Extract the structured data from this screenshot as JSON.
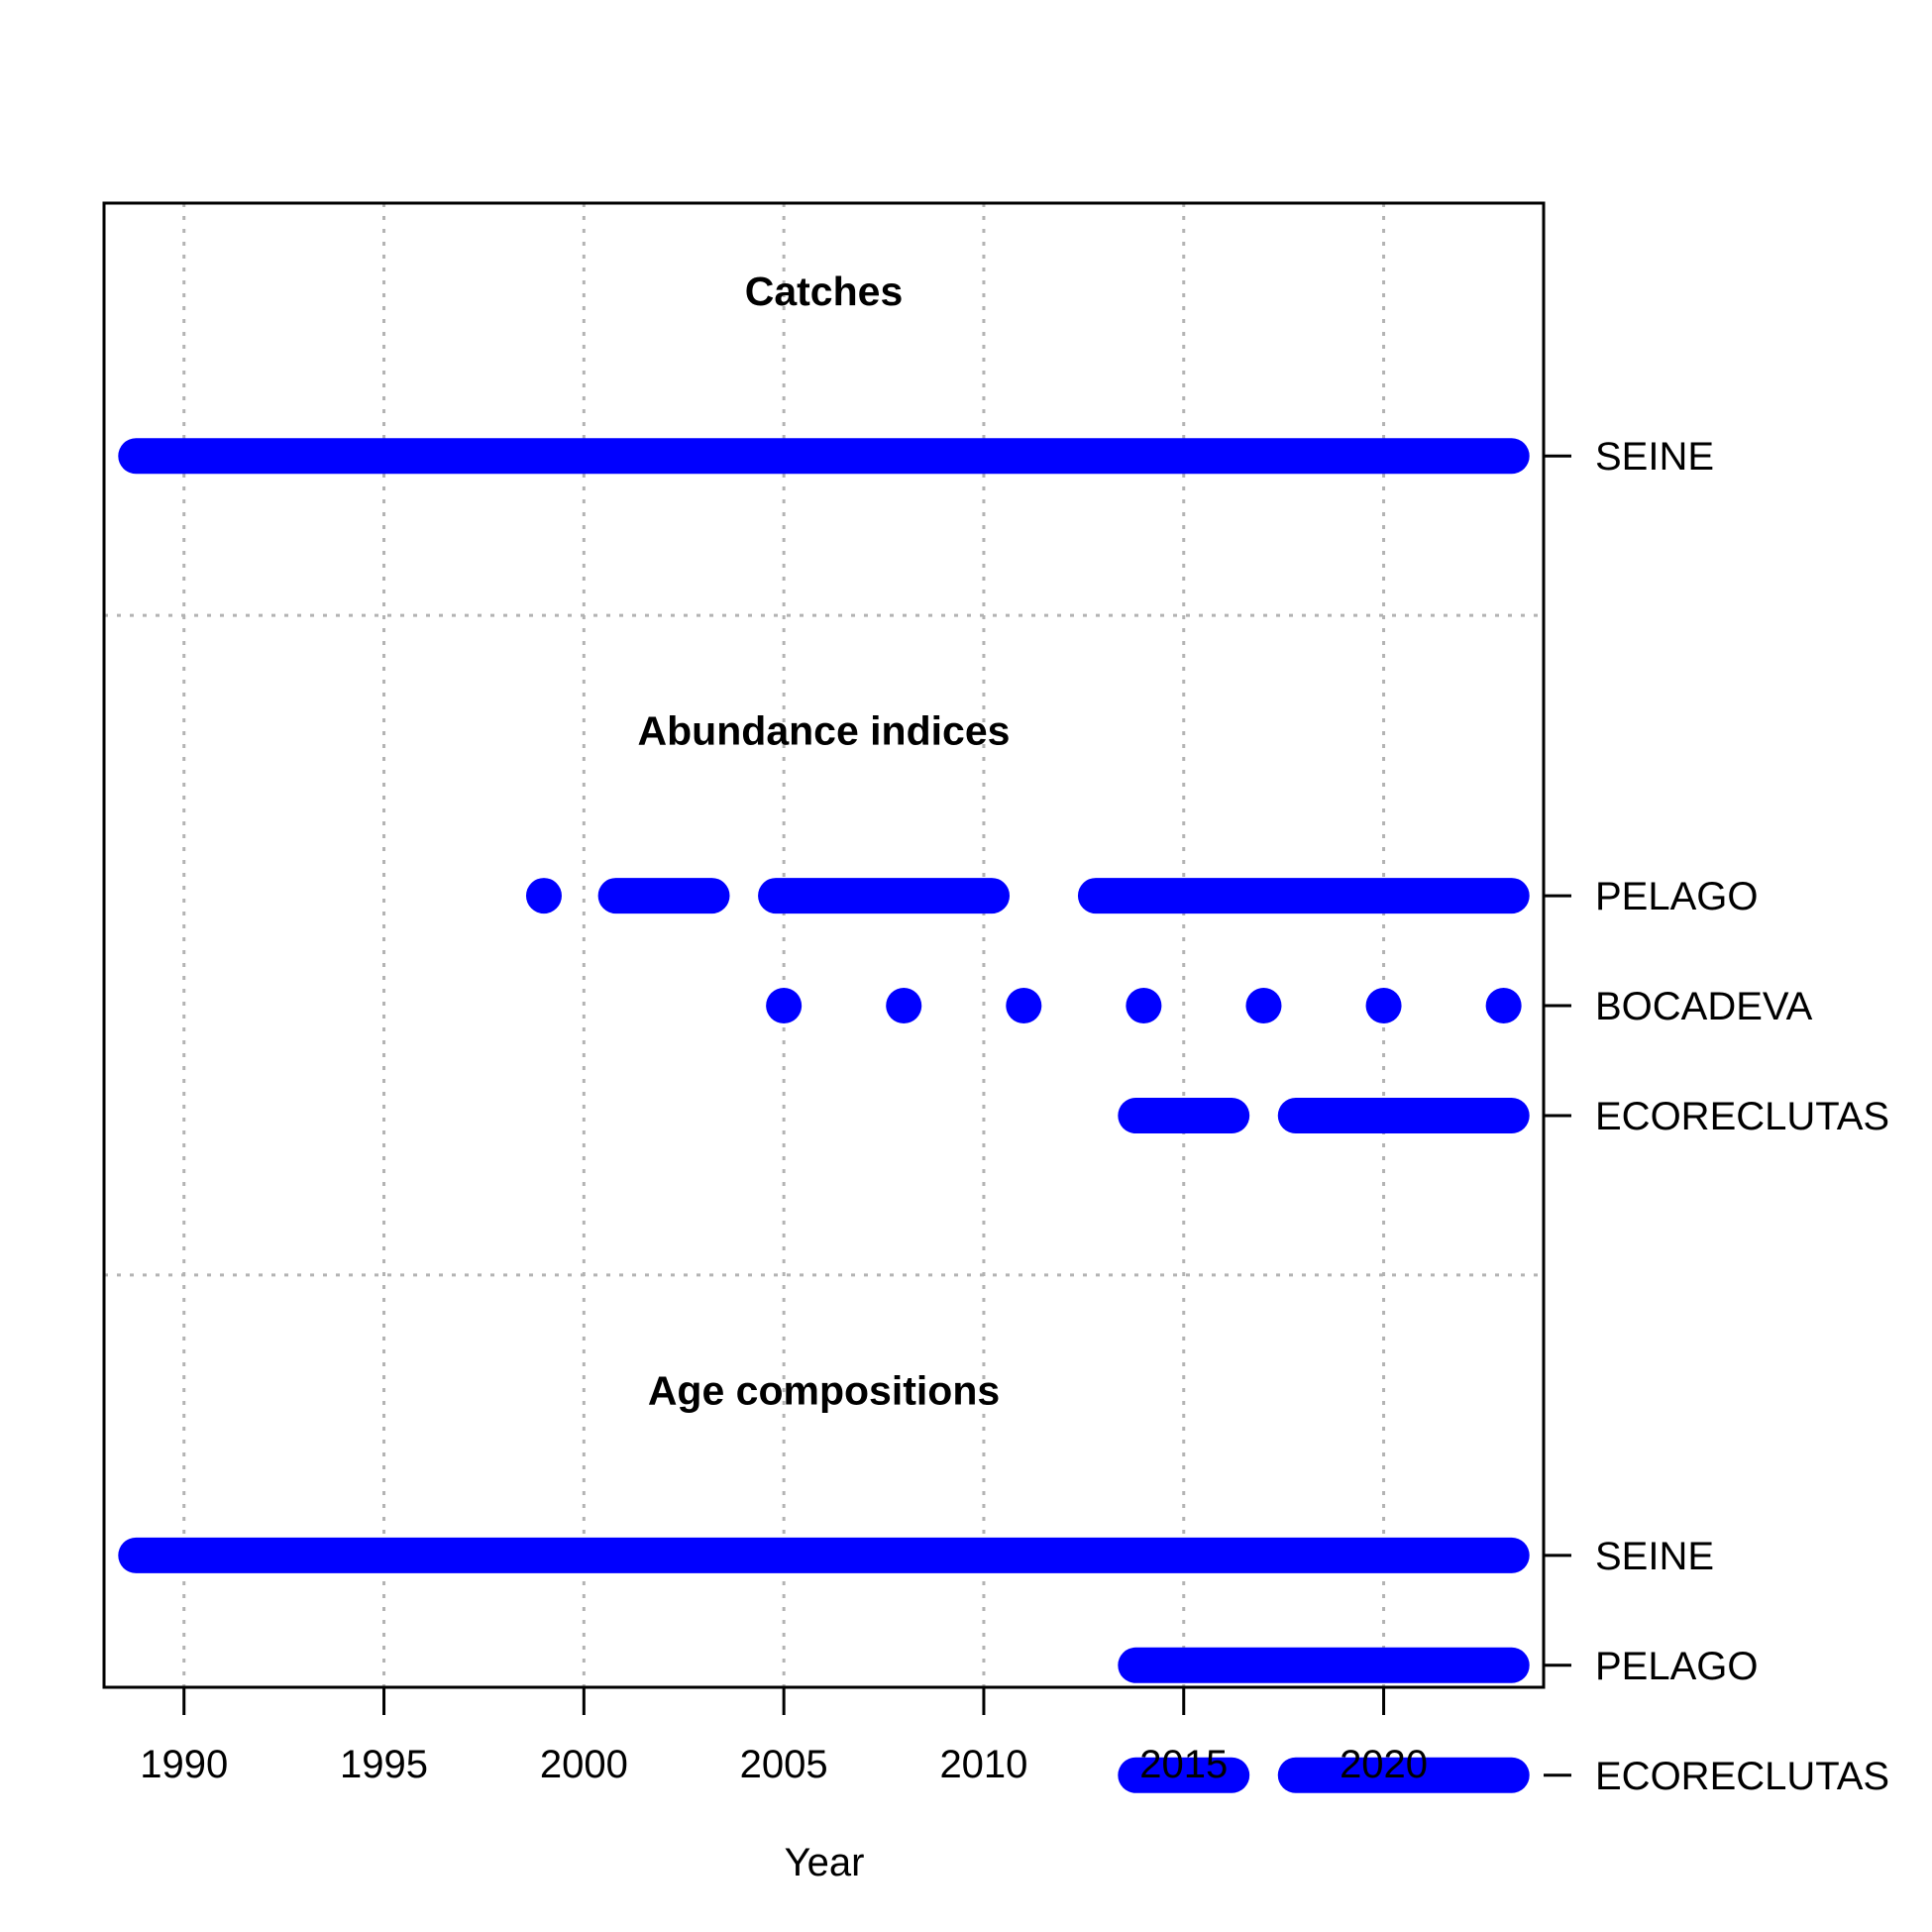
{
  "chart_data": {
    "type": "timeline",
    "xlabel": "Year",
    "xlim": [
      1988,
      2024
    ],
    "x_ticks": [
      1990,
      1995,
      2000,
      2005,
      2010,
      2015,
      2020
    ],
    "x_tick_labels": [
      "1990",
      "1995",
      "2000",
      "2005",
      "2010",
      "2015",
      "2020"
    ],
    "grid": true,
    "mark_color": "#0000ff",
    "sections": [
      {
        "title": "Catches",
        "rows": [
          {
            "label": "SEINE",
            "years": [
              1989,
              1990,
              1991,
              1992,
              1993,
              1994,
              1995,
              1996,
              1997,
              1998,
              1999,
              2000,
              2001,
              2002,
              2003,
              2004,
              2005,
              2006,
              2007,
              2008,
              2009,
              2010,
              2011,
              2012,
              2013,
              2014,
              2015,
              2016,
              2017,
              2018,
              2019,
              2020,
              2021,
              2022,
              2023
            ]
          }
        ]
      },
      {
        "title": "Abundance indices",
        "rows": [
          {
            "label": "PELAGO",
            "years": [
              1999,
              2001,
              2002,
              2003,
              2005,
              2006,
              2007,
              2008,
              2009,
              2010,
              2013,
              2014,
              2015,
              2016,
              2017,
              2018,
              2019,
              2020,
              2021,
              2022,
              2023
            ]
          },
          {
            "label": "BOCADEVA",
            "years": [
              2005,
              2008,
              2011,
              2014,
              2017,
              2020,
              2023
            ]
          },
          {
            "label": "ECORECLUTAS",
            "years": [
              2014,
              2015,
              2016,
              2018,
              2019,
              2020,
              2021,
              2022,
              2023
            ]
          }
        ]
      },
      {
        "title": "Age compositions",
        "rows": [
          {
            "label": "SEINE",
            "years": [
              1989,
              1990,
              1991,
              1992,
              1993,
              1994,
              1995,
              1996,
              1997,
              1998,
              1999,
              2000,
              2001,
              2002,
              2003,
              2004,
              2005,
              2006,
              2007,
              2008,
              2009,
              2010,
              2011,
              2012,
              2013,
              2014,
              2015,
              2016,
              2017,
              2018,
              2019,
              2020,
              2021,
              2022,
              2023
            ]
          },
          {
            "label": "PELAGO",
            "years": [
              2014,
              2015,
              2016,
              2017,
              2018,
              2019,
              2020,
              2021,
              2022,
              2023
            ]
          },
          {
            "label": "ECORECLUTAS",
            "years": [
              2014,
              2015,
              2016,
              2018,
              2019,
              2020,
              2021,
              2022,
              2023
            ]
          }
        ]
      }
    ]
  }
}
